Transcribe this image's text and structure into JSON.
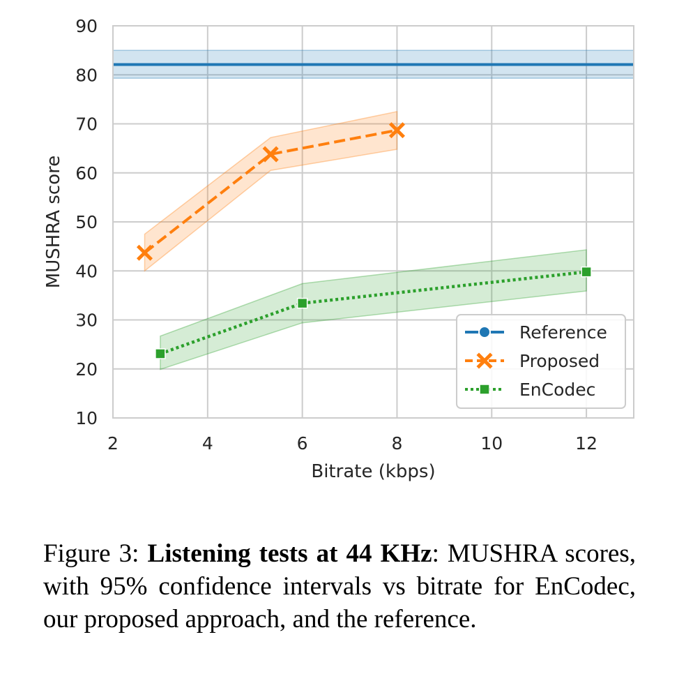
{
  "chart_data": {
    "type": "line",
    "xlabel": "Bitrate (kbps)",
    "ylabel": "MUSHRA score",
    "xlim": [
      2,
      13
    ],
    "ylim": [
      10,
      90
    ],
    "xticks": [
      2,
      4,
      6,
      8,
      10,
      12
    ],
    "yticks": [
      10,
      20,
      30,
      40,
      50,
      60,
      70,
      80,
      90
    ],
    "grid": true,
    "legend_position": "bottom-right",
    "series": [
      {
        "name": "Reference",
        "color": "#1f77b4",
        "linestyle": "solid",
        "marker": "circle",
        "x": [
          2,
          13
        ],
        "y": [
          82.1,
          82.1
        ],
        "ci_low": [
          79.3,
          79.3
        ],
        "ci_high": [
          85.0,
          85.0
        ]
      },
      {
        "name": "Proposed",
        "color": "#ff7f0e",
        "linestyle": "dashed",
        "marker": "x",
        "x": [
          2.67,
          5.33,
          8
        ],
        "y": [
          43.7,
          63.8,
          68.7
        ],
        "ci_low": [
          40.0,
          60.5,
          64.8
        ],
        "ci_high": [
          47.5,
          67.2,
          72.5
        ]
      },
      {
        "name": "EnCodec",
        "color": "#2ca02c",
        "linestyle": "dotted",
        "marker": "square",
        "x": [
          3,
          6,
          12
        ],
        "y": [
          23.1,
          33.4,
          39.8
        ],
        "ci_low": [
          19.9,
          29.4,
          35.9
        ],
        "ci_high": [
          26.7,
          37.4,
          44.3
        ]
      }
    ]
  },
  "caption": {
    "prefix": "Figure 3: ",
    "bold": "Listening tests at 44 KHz",
    "rest": ": MUSHRA scores, with 95% confidence intervals vs bitrate for EnCodec, our proposed approach, and the reference."
  }
}
